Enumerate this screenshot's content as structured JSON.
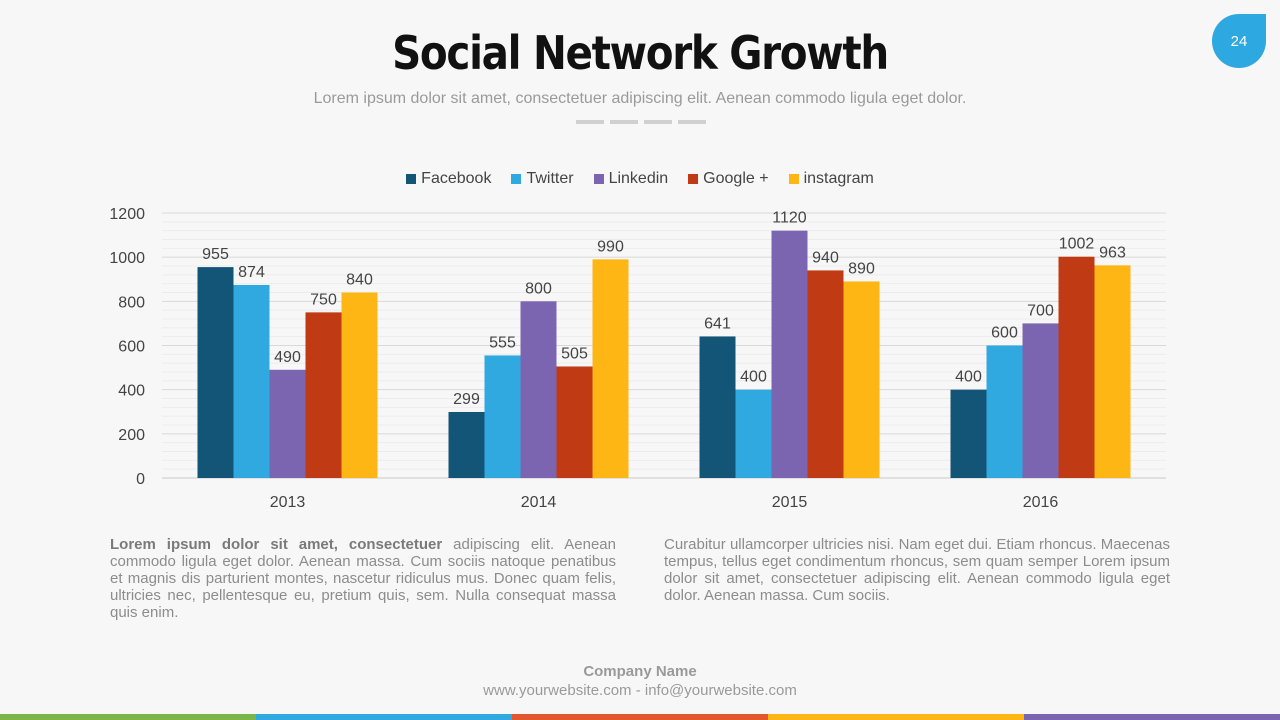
{
  "header": {
    "title": "Social Network Growth",
    "subtitle": "Lorem ipsum dolor sit amet, consectetuer adipiscing elit. Aenean commodo ligula eget dolor.",
    "page_number": "24"
  },
  "chart_data": {
    "type": "bar",
    "categories": [
      "2013",
      "2014",
      "2015",
      "2016"
    ],
    "series": [
      {
        "name": "Facebook",
        "color": "#135577",
        "values": [
          955,
          299,
          641,
          400
        ]
      },
      {
        "name": "Twitter",
        "color": "#30a8e0",
        "values": [
          874,
          555,
          400,
          600
        ]
      },
      {
        "name": "Linkedin",
        "color": "#7c65b0",
        "values": [
          490,
          800,
          1120,
          700
        ]
      },
      {
        "name": "Google +",
        "color": "#c03b13",
        "values": [
          750,
          505,
          940,
          1002
        ]
      },
      {
        "name": "instagram",
        "color": "#fdb614",
        "values": [
          840,
          990,
          890,
          963
        ]
      }
    ],
    "ylim": [
      0,
      1200
    ],
    "yticks": [
      0,
      200,
      400,
      600,
      800,
      1000,
      1200
    ],
    "title": "",
    "xlabel": "",
    "ylabel": "",
    "legend": "top-center",
    "grid": true
  },
  "body": {
    "left_bold": "Lorem ipsum dolor sit amet, consectetuer",
    "left_text": " adipiscing elit. Aenean commodo ligula eget dolor. Aenean massa. Cum sociis natoque penatibus et magnis dis parturient montes, nascetur ridiculus mus. Donec quam felis, ultricies nec, pellentesque eu, pretium quis, sem. Nulla consequat massa quis enim.",
    "right_text": "Curabitur ullamcorper ultricies nisi. Nam eget dui. Etiam rhoncus. Maecenas tempus, tellus eget condimentum rhoncus, sem quam semper Lorem ipsum dolor sit amet, consectetuer adipiscing elit. Aenean commodo ligula eget dolor. Aenean massa. Cum sociis."
  },
  "footer": {
    "company": "Company Name",
    "contact": "www.yourwebsite.com - info@yourwebsite.com"
  },
  "theme": {
    "bottom_bar_colors": [
      "#7ab648",
      "#30a8e0",
      "#e2572b",
      "#fdb614",
      "#7c65b0"
    ]
  }
}
